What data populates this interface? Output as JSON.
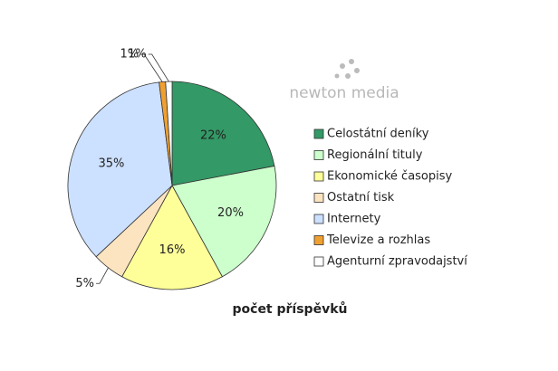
{
  "chart_data": {
    "type": "pie",
    "title": "počet příspěvků",
    "watermark": "newton media",
    "categories": [
      "Celostátní deníky",
      "Regionální tituly",
      "Ekonomické časopisy",
      "Ostatní tisk",
      "Internety",
      "Televize a rozhlas",
      "Agenturní zpravodajství"
    ],
    "values": [
      22,
      20,
      16,
      5,
      35,
      1,
      1
    ],
    "value_labels": [
      "22%",
      "20%",
      "16%",
      "5%",
      "35%",
      "1%",
      "1%"
    ],
    "colors": [
      "#339966",
      "#ccffcc",
      "#ffff99",
      "#fce4c0",
      "#cce0ff",
      "#f0a030",
      "#ffffff"
    ],
    "legend": "right"
  }
}
